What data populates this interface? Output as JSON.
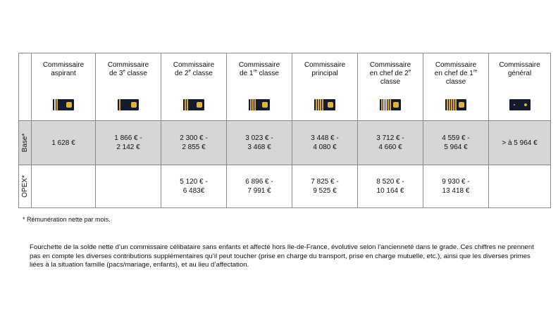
{
  "columns": [
    {
      "line1": "Commissaire",
      "line2": "aspirant",
      "sup": "",
      "line2b": "",
      "line3": "",
      "stripes": "aspirant"
    },
    {
      "line1": "Commissaire",
      "line2": "de 3",
      "sup": "e",
      "line2b": " classe",
      "line3": "",
      "stripes": "3"
    },
    {
      "line1": "Commissaire",
      "line2": "de 2",
      "sup": "e",
      "line2b": "  classe",
      "line3": "",
      "stripes": "2"
    },
    {
      "line1": "Commissaire",
      "line2": "de 1",
      "sup": "re",
      "line2b": "  classe",
      "line3": "",
      "stripes": "1"
    },
    {
      "line1": "Commissaire",
      "line2": "principal",
      "sup": "",
      "line2b": "",
      "line3": "",
      "stripes": "principal"
    },
    {
      "line1": "Commissaire",
      "line2": "en chef de 2",
      "sup": "e",
      "line2b": "",
      "line3": "classe",
      "stripes": "chef2"
    },
    {
      "line1": "Commissaire",
      "line2": "en chef de 1",
      "sup": "re",
      "line2b": "",
      "line3": "classe",
      "stripes": "chef1"
    },
    {
      "line1": "Commissaire",
      "line2": "général",
      "sup": "",
      "line2b": "",
      "line3": "",
      "stripes": "general"
    }
  ],
  "rows": {
    "base_label": "Base*",
    "opex_label": "OPEX*",
    "base": [
      [
        "1 628 €",
        ""
      ],
      [
        "1 866 € -",
        "2 142 €"
      ],
      [
        "2 300 € -",
        "2 855 €"
      ],
      [
        "3 023 € -",
        "3 468 €"
      ],
      [
        "3 448 € -",
        "4 080 €"
      ],
      [
        "3 712  € -",
        "4 660 €"
      ],
      [
        "4 559 € -",
        "5 964 €"
      ],
      [
        "> à 5 964 €",
        ""
      ]
    ],
    "opex": [
      [
        "",
        ""
      ],
      [
        "",
        ""
      ],
      [
        "5 120 € -",
        "6 483€"
      ],
      [
        "6 896 € -",
        "7 991 €"
      ],
      [
        "7 825 € -",
        "9 525 €"
      ],
      [
        "8 520 € -",
        "10 164 €"
      ],
      [
        "9 930 € -",
        "13 418 €"
      ],
      [
        "",
        ""
      ]
    ]
  },
  "footnote": "* Rémunération nette par mois.",
  "paragraph": "Fourchette de la solde nette d’un commissaire célibataire sans enfants et affecté hors Ile-de-France, évolutive selon l’ancienneté dans le grade. Ces chiffres ne prennent pas en compte les diverses contributions supplémentaires qu’il peut toucher (prise en charge du transport, prise en charge mutuelle, etc.), ainsi que les diverses primes liées à la situation famille (pacs/mariage, enfants), et au lieu d’affectation.",
  "colors": {
    "epaulette": "#141b2e",
    "gold": "#d7a62a",
    "base_row_bg": "#d6d6d6",
    "border": "#8a8a8a"
  }
}
